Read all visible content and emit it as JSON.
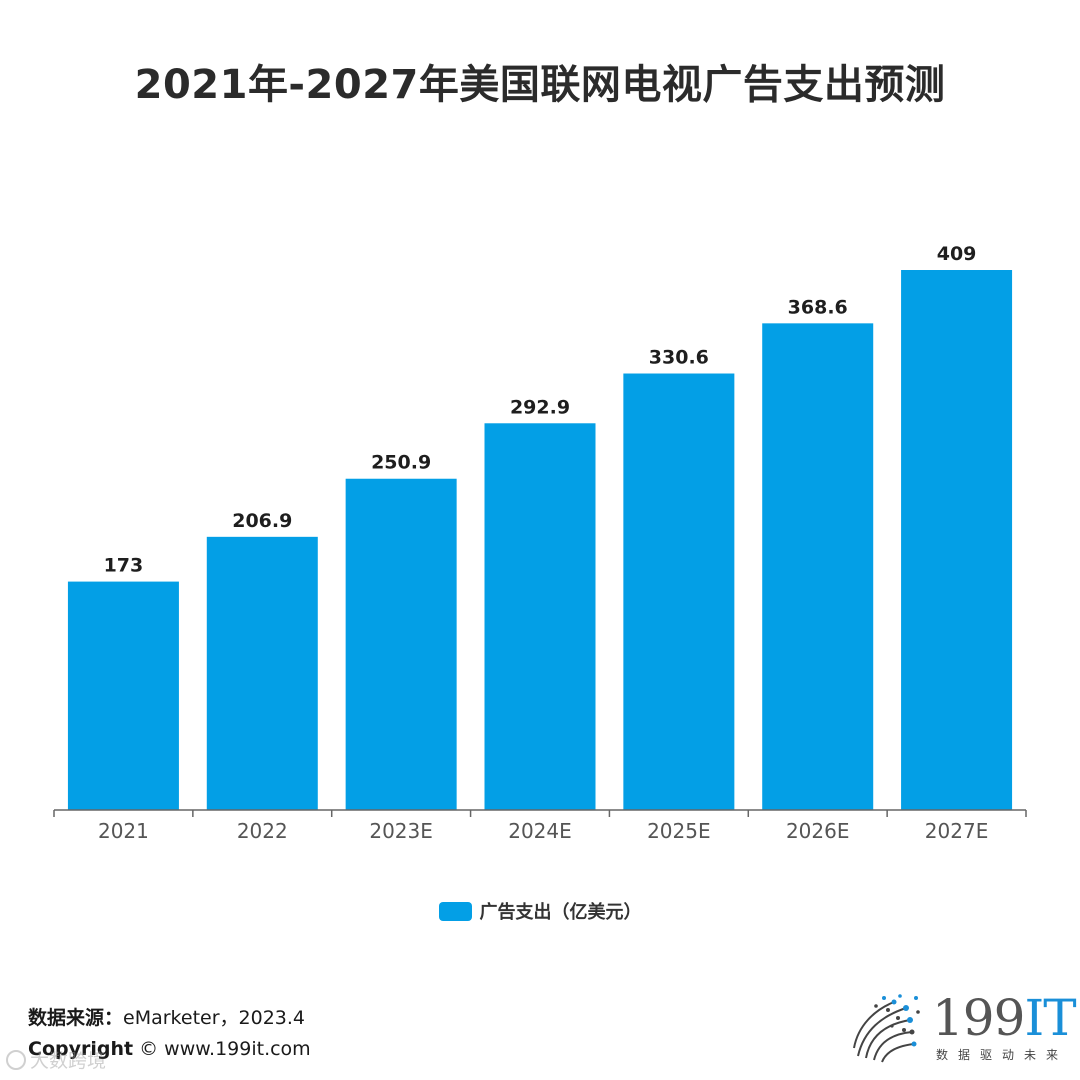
{
  "chart_data": {
    "type": "bar",
    "title": "2021年-2027年美国联网电视广告支出预测",
    "categories": [
      "2021",
      "2022",
      "2023E",
      "2024E",
      "2025E",
      "2026E",
      "2027E"
    ],
    "series": [
      {
        "name": "广告支出（亿美元）",
        "values": [
          173,
          206.9,
          250.9,
          292.9,
          330.6,
          368.6,
          409
        ],
        "labels": [
          "173",
          "206.9",
          "250.9",
          "292.9",
          "330.6",
          "368.6",
          "409"
        ],
        "color": "#039fe6"
      }
    ],
    "ylim": [
      0,
      450
    ],
    "grid": false,
    "legend_position": "bottom-center"
  },
  "footer": {
    "source_label": "数据来源：",
    "source_value": "eMarketer，2023.4",
    "copyright_label": "Copyright",
    "copyright_value": " © www.199it.com",
    "watermark": "大数跨境"
  },
  "logo": {
    "number": "199",
    "letters": "IT",
    "slogan": "数据驱动未来",
    "number_color": "#555555",
    "letters_color": "#1a8fd8"
  }
}
